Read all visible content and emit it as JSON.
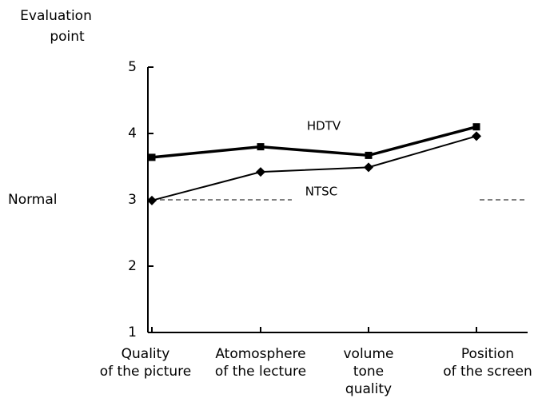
{
  "chart_data": {
    "type": "line",
    "y_label": [
      "Evaluation",
      "point"
    ],
    "categories": [
      [
        "Quality",
        "of the picture"
      ],
      [
        "Atomosphere",
        "of the lecture"
      ],
      [
        "volume",
        "tone",
        "quality"
      ],
      [
        "Position",
        "of the screen"
      ]
    ],
    "series": [
      {
        "name": "HDTV",
        "color": "#000000",
        "marker": "square",
        "values": [
          3.64,
          3.8,
          3.67,
          4.1
        ]
      },
      {
        "name": "NTSC",
        "color": "#000000",
        "marker": "diamond",
        "values": [
          2.99,
          3.42,
          3.49,
          3.96
        ]
      }
    ],
    "ylim": [
      1,
      5
    ],
    "yticks": [
      1,
      2,
      3,
      4,
      5
    ],
    "reference_line": {
      "value": 3,
      "label": "Normal"
    }
  }
}
